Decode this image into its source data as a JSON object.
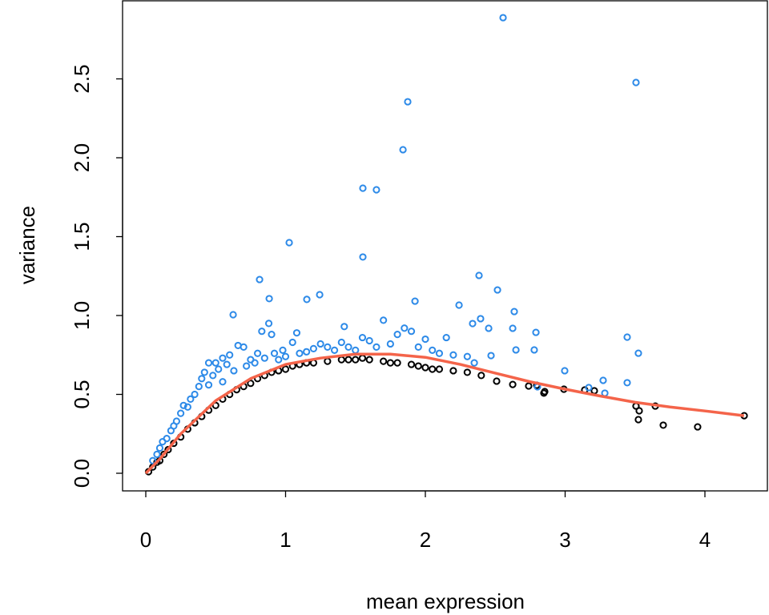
{
  "chart_data": {
    "type": "scatter",
    "title": "",
    "xlabel": "mean expression",
    "ylabel": "variance",
    "xlim": [
      -0.17,
      4.45
    ],
    "ylim": [
      -0.11,
      3.0
    ],
    "xticks": [
      "0",
      "1",
      "2",
      "3",
      "4"
    ],
    "yticks": [
      "0.0",
      "0.5",
      "1.0",
      "1.5",
      "2.0",
      "2.5"
    ],
    "grid": false,
    "colors": {
      "highlighted": "#2d8ae8",
      "other": "#000000",
      "trend": "#f4644a"
    },
    "series": [
      {
        "color": "#000000",
        "points": [
          [
            0.02,
            0.01
          ],
          [
            0.05,
            0.04
          ],
          [
            0.08,
            0.07
          ],
          [
            0.1,
            0.08
          ],
          [
            0.13,
            0.12
          ],
          [
            0.16,
            0.15
          ],
          [
            0.2,
            0.19
          ],
          [
            0.25,
            0.23
          ],
          [
            0.3,
            0.28
          ],
          [
            0.35,
            0.32
          ],
          [
            0.4,
            0.36
          ],
          [
            0.45,
            0.4
          ],
          [
            0.5,
            0.43
          ],
          [
            0.55,
            0.47
          ],
          [
            0.6,
            0.5
          ],
          [
            0.65,
            0.53
          ],
          [
            0.7,
            0.55
          ],
          [
            0.75,
            0.57
          ],
          [
            0.8,
            0.6
          ],
          [
            0.85,
            0.62
          ],
          [
            0.9,
            0.64
          ],
          [
            0.95,
            0.65
          ],
          [
            1.0,
            0.66
          ],
          [
            1.05,
            0.68
          ],
          [
            1.1,
            0.69
          ],
          [
            1.15,
            0.7
          ],
          [
            1.2,
            0.7
          ],
          [
            1.3,
            0.71
          ],
          [
            1.4,
            0.72
          ],
          [
            1.45,
            0.72
          ],
          [
            1.5,
            0.72
          ],
          [
            1.55,
            0.73
          ],
          [
            1.6,
            0.72
          ],
          [
            1.7,
            0.71
          ],
          [
            1.75,
            0.7
          ],
          [
            1.8,
            0.7
          ],
          [
            1.9,
            0.69
          ],
          [
            1.95,
            0.68
          ],
          [
            2.0,
            0.67
          ],
          [
            2.05,
            0.66
          ],
          [
            2.1,
            0.66
          ],
          [
            2.2,
            0.65
          ],
          [
            2.3,
            0.64
          ],
          [
            2.4,
            0.62
          ],
          [
            2.51,
            0.584
          ],
          [
            2.625,
            0.563
          ],
          [
            2.739,
            0.553
          ],
          [
            2.797,
            0.558
          ],
          [
            2.848,
            0.508
          ],
          [
            2.854,
            0.518
          ],
          [
            2.991,
            0.533
          ],
          [
            3.14,
            0.528
          ],
          [
            3.209,
            0.523
          ],
          [
            3.507,
            0.426
          ],
          [
            3.645,
            0.426
          ],
          [
            3.53,
            0.396
          ],
          [
            3.524,
            0.34
          ],
          [
            3.702,
            0.305
          ],
          [
            3.948,
            0.294
          ],
          [
            4.281,
            0.365
          ]
        ]
      },
      {
        "color": "#2d8ae8",
        "points": [
          [
            0.05,
            0.08
          ],
          [
            0.08,
            0.12
          ],
          [
            0.1,
            0.16
          ],
          [
            0.12,
            0.2
          ],
          [
            0.15,
            0.22
          ],
          [
            0.18,
            0.27
          ],
          [
            0.2,
            0.3
          ],
          [
            0.22,
            0.33
          ],
          [
            0.25,
            0.38
          ],
          [
            0.27,
            0.43
          ],
          [
            0.3,
            0.42
          ],
          [
            0.32,
            0.47
          ],
          [
            0.35,
            0.5
          ],
          [
            0.38,
            0.55
          ],
          [
            0.4,
            0.6
          ],
          [
            0.42,
            0.64
          ],
          [
            0.45,
            0.56
          ],
          [
            0.48,
            0.62
          ],
          [
            0.5,
            0.7
          ],
          [
            0.52,
            0.66
          ],
          [
            0.55,
            0.58
          ],
          [
            0.58,
            0.69
          ],
          [
            0.6,
            0.75
          ],
          [
            0.63,
            0.65
          ],
          [
            0.66,
            0.81
          ],
          [
            0.7,
            0.8
          ],
          [
            0.72,
            0.68
          ],
          [
            0.75,
            0.72
          ],
          [
            0.78,
            0.7
          ],
          [
            0.8,
            0.76
          ],
          [
            0.83,
            0.9
          ],
          [
            0.85,
            0.73
          ],
          [
            0.88,
            0.95
          ],
          [
            0.9,
            0.88
          ],
          [
            0.92,
            0.76
          ],
          [
            0.95,
            0.72
          ],
          [
            0.98,
            0.78
          ],
          [
            1.0,
            0.74
          ],
          [
            1.05,
            0.83
          ],
          [
            1.08,
            0.89
          ],
          [
            1.1,
            0.76
          ],
          [
            1.15,
            0.77
          ],
          [
            1.2,
            0.79
          ],
          [
            1.25,
            0.82
          ],
          [
            1.3,
            0.8
          ],
          [
            1.35,
            0.78
          ],
          [
            1.4,
            0.83
          ],
          [
            1.45,
            0.8
          ],
          [
            1.5,
            0.78
          ],
          [
            1.55,
            0.86
          ],
          [
            1.6,
            0.84
          ],
          [
            1.65,
            0.8
          ],
          [
            1.7,
            0.97
          ],
          [
            1.75,
            0.82
          ],
          [
            1.8,
            0.88
          ],
          [
            1.85,
            0.92
          ],
          [
            1.9,
            0.9
          ],
          [
            1.95,
            0.8
          ],
          [
            2.0,
            0.85
          ],
          [
            2.05,
            0.78
          ],
          [
            2.1,
            0.76
          ],
          [
            2.15,
            0.86
          ],
          [
            2.2,
            0.75
          ],
          [
            2.3,
            0.74
          ],
          [
            2.35,
            0.7
          ],
          [
            1.42,
            0.93
          ],
          [
            0.45,
            0.7
          ],
          [
            0.55,
            0.73
          ],
          [
            2.556,
            2.888
          ],
          [
            3.507,
            2.477
          ],
          [
            1.874,
            2.355
          ],
          [
            1.84,
            2.051
          ],
          [
            1.553,
            1.807
          ],
          [
            1.65,
            1.797
          ],
          [
            1.026,
            1.462
          ],
          [
            1.553,
            1.371
          ],
          [
            0.814,
            1.228
          ],
          [
            2.384,
            1.254
          ],
          [
            2.516,
            1.162
          ],
          [
            1.244,
            1.132
          ],
          [
            1.152,
            1.102
          ],
          [
            1.926,
            1.091
          ],
          [
            0.883,
            1.107
          ],
          [
            0.625,
            1.005
          ],
          [
            2.241,
            1.066
          ],
          [
            2.636,
            1.025
          ],
          [
            3.444,
            0.863
          ],
          [
            3.524,
            0.761
          ],
          [
            2.997,
            0.65
          ],
          [
            2.791,
            0.893
          ],
          [
            2.802,
            0.548
          ],
          [
            3.284,
            0.508
          ],
          [
            3.272,
            0.589
          ],
          [
            3.444,
            0.574
          ],
          [
            3.169,
            0.543
          ],
          [
            2.338,
            0.949
          ],
          [
            2.47,
            0.746
          ],
          [
            2.648,
            0.782
          ],
          [
            2.779,
            0.782
          ],
          [
            2.395,
            0.98
          ],
          [
            2.453,
            0.919
          ],
          [
            2.625,
            0.919
          ]
        ]
      }
    ],
    "trend_line": {
      "color": "#f4644a",
      "points": [
        [
          0,
          0
        ],
        [
          0.1,
          0.09
        ],
        [
          0.25,
          0.25
        ],
        [
          0.5,
          0.46
        ],
        [
          0.75,
          0.6
        ],
        [
          1,
          0.69
        ],
        [
          1.25,
          0.73
        ],
        [
          1.5,
          0.755
        ],
        [
          1.75,
          0.755
        ],
        [
          2,
          0.735
        ],
        [
          2.25,
          0.69
        ],
        [
          2.5,
          0.635
        ],
        [
          2.75,
          0.58
        ],
        [
          3,
          0.533
        ],
        [
          3.25,
          0.49
        ],
        [
          3.5,
          0.45
        ],
        [
          3.75,
          0.42
        ],
        [
          4,
          0.395
        ],
        [
          4.28,
          0.365
        ]
      ]
    }
  }
}
